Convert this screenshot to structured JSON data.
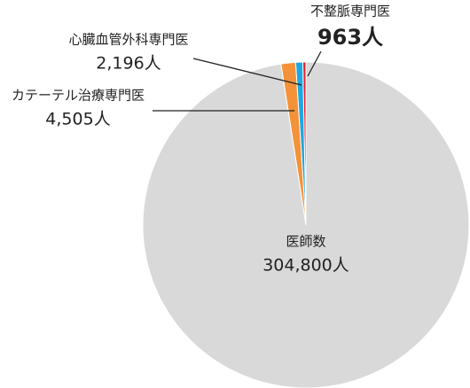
{
  "chart_data": {
    "type": "pie",
    "categories": [
      "不整脈専門医",
      "心臓血管外科専門医",
      "カテーテル治療専門医",
      "医師数"
    ],
    "values": [
      963,
      2196,
      4505,
      304800
    ],
    "value_labels": [
      "963人",
      "2,196人",
      "4,505人",
      "304,800人"
    ],
    "colors": [
      "#e8202a",
      "#1ea7e1",
      "#f39238",
      "#d9d9d9"
    ]
  }
}
